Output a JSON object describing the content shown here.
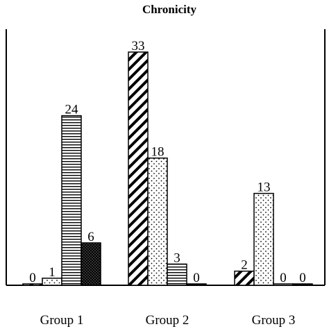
{
  "chart_data": {
    "type": "bar",
    "title": "Chronicity",
    "categories": [
      "Group 1",
      "Group 2",
      "Group 3"
    ],
    "series": [
      {
        "pattern": "diagonal-hatch",
        "values": [
          0,
          33,
          2
        ]
      },
      {
        "pattern": "sparse-dots",
        "values": [
          1,
          18,
          13
        ]
      },
      {
        "pattern": "horizontal-lines",
        "values": [
          24,
          3,
          0
        ]
      },
      {
        "pattern": "dense-dots-dark",
        "values": [
          6,
          0,
          0
        ]
      }
    ],
    "ylim": [
      0,
      33
    ],
    "grid": false,
    "legend": "none"
  }
}
